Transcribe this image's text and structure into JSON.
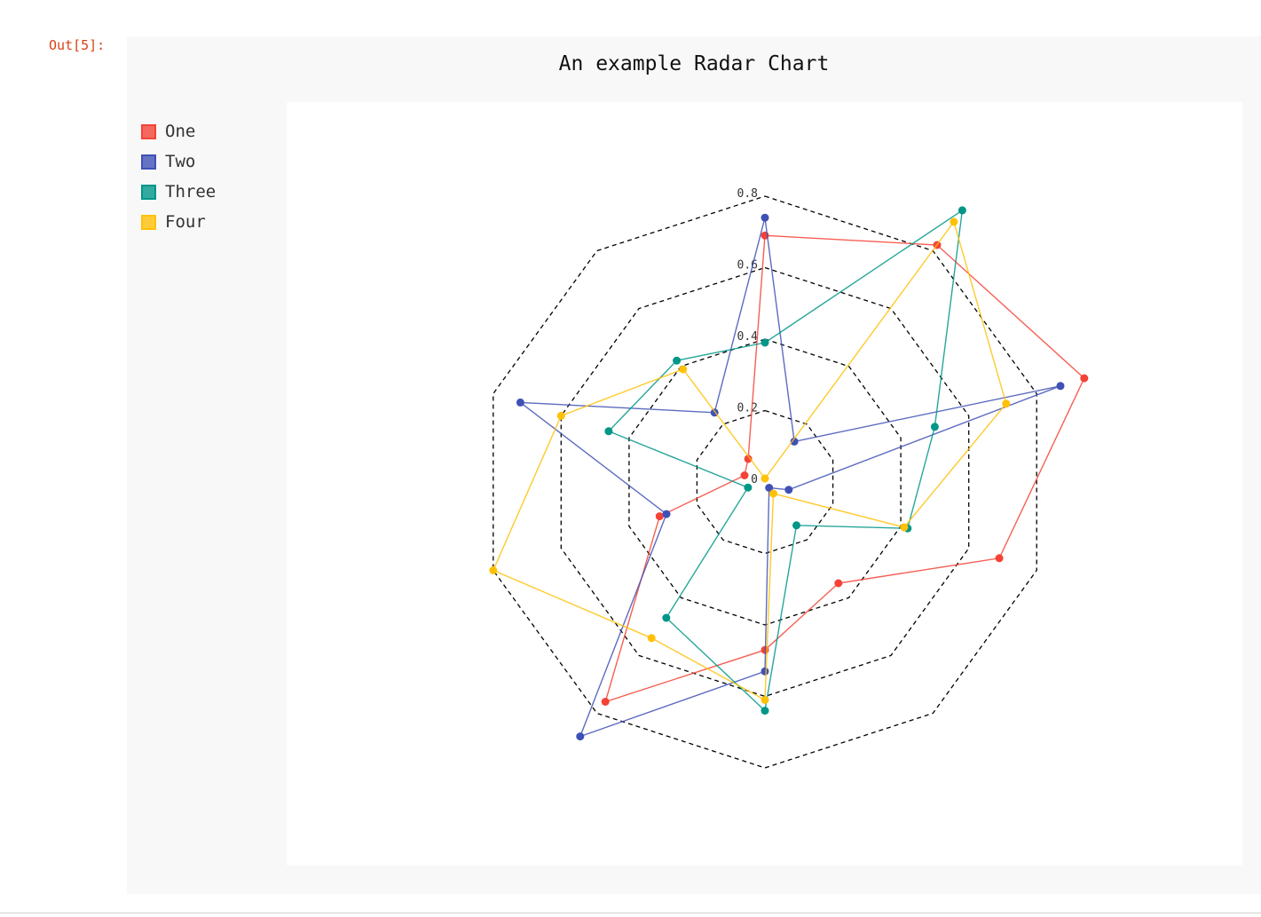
{
  "cell": {
    "prompt": "Out[5]:"
  },
  "chart_data": {
    "type": "radar",
    "title": "An example Radar Chart",
    "axes_count": 10,
    "rlim": [
      0,
      0.8
    ],
    "radial_ticks": [
      0,
      0.2,
      0.4,
      0.6,
      0.8
    ],
    "radial_tick_labels": [
      "0",
      "0.2",
      "0.4",
      "0.6",
      "0.8"
    ],
    "grid": true,
    "grid_style": "dashed",
    "legend_position": "top-left",
    "series": [
      {
        "name": "One",
        "color": "#f44336",
        "values": [
          0.69,
          0.82,
          0.94,
          0.69,
          0.35,
          0.47,
          0.76,
          0.31,
          0.06,
          0.08
        ]
      },
      {
        "name": "Two",
        "color": "#3f51b5",
        "values": [
          0.74,
          0.14,
          0.87,
          0.07,
          0.02,
          0.53,
          0.88,
          0.29,
          0.72,
          0.24
        ]
      },
      {
        "name": "Three",
        "color": "#009688",
        "values": [
          0.39,
          0.94,
          0.5,
          0.42,
          0.15,
          0.64,
          0.47,
          0.05,
          0.46,
          0.42
        ]
      },
      {
        "name": "Four",
        "color": "#ffc107",
        "values": [
          0.01,
          0.9,
          0.71,
          0.41,
          0.04,
          0.61,
          0.54,
          0.8,
          0.6,
          0.39
        ]
      }
    ]
  }
}
